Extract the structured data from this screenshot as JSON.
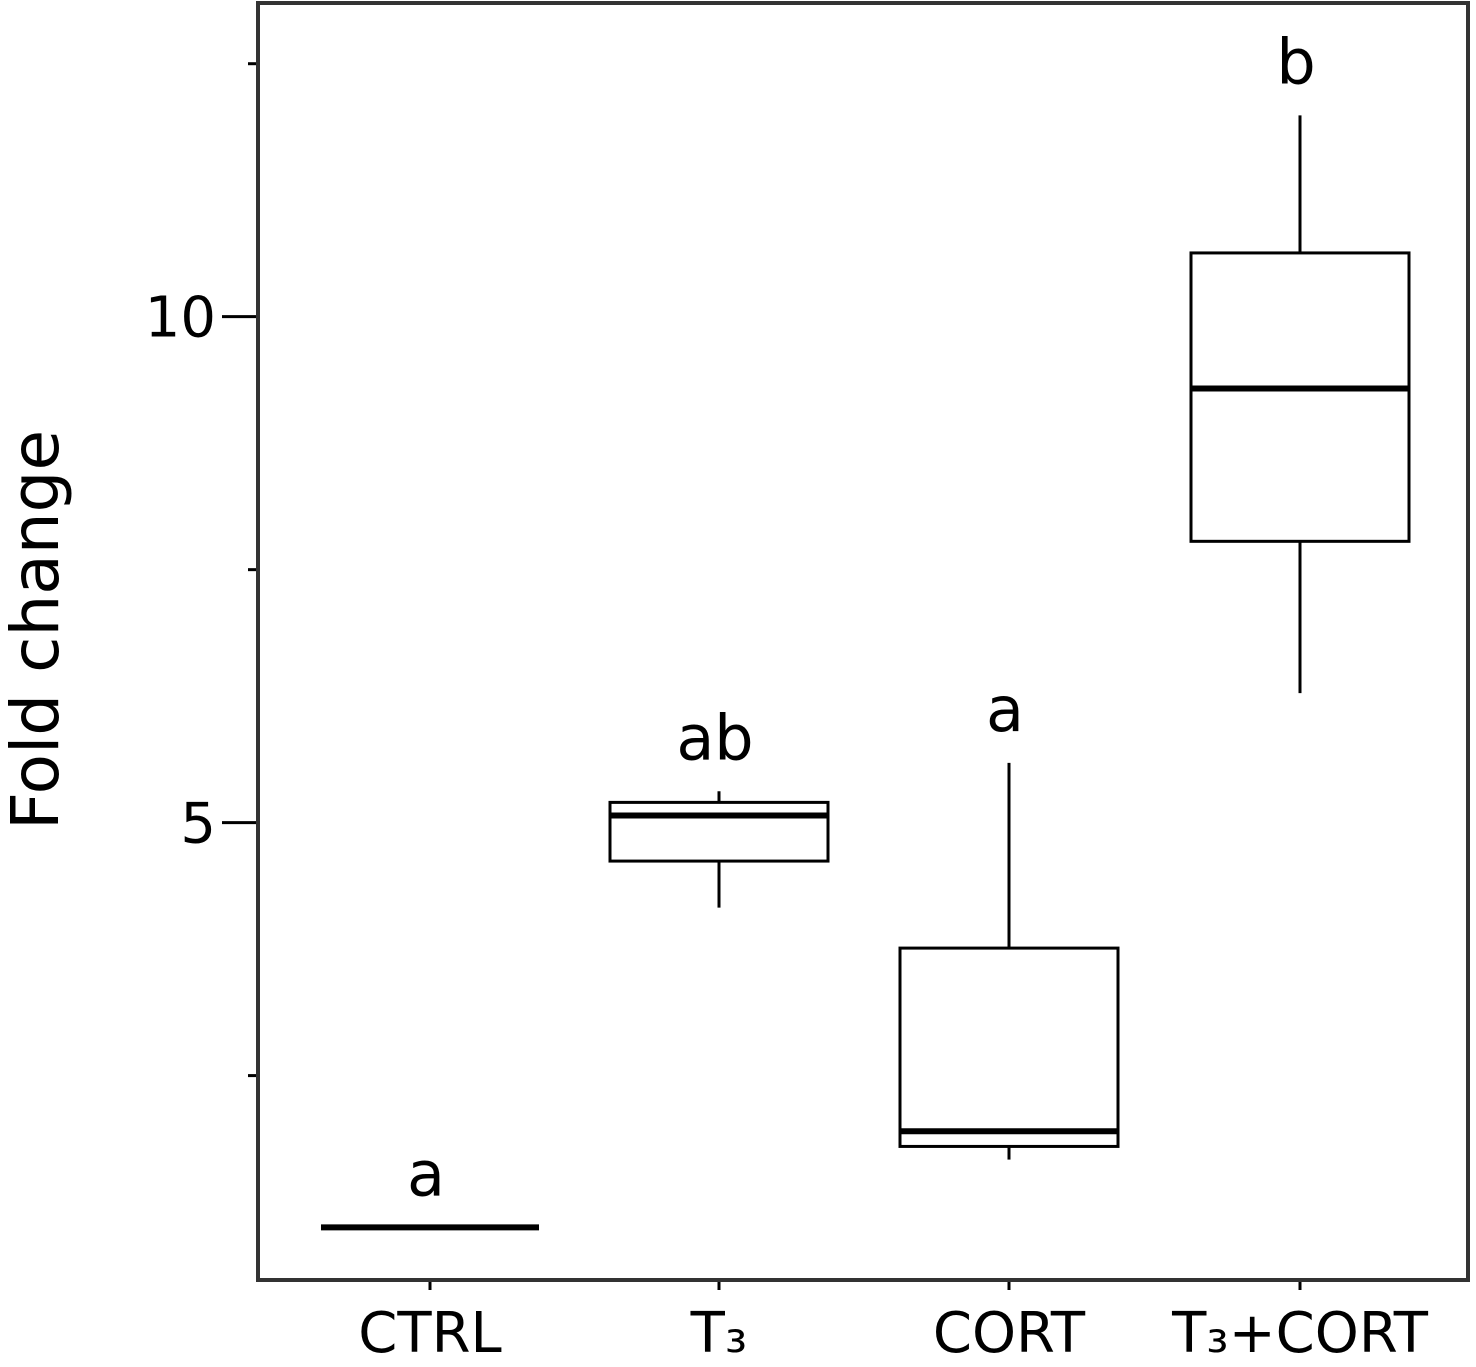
{
  "chart_data": {
    "type": "box",
    "title": "",
    "xlabel": "",
    "ylabel": "Fold change",
    "ylim": [
      0.48,
      13.1
    ],
    "y_ticks_major": [
      5,
      10
    ],
    "y_tick_labels": [
      "5",
      "10"
    ],
    "y_ticks_minor": [
      2.5,
      7.5,
      12.5
    ],
    "grid": false,
    "categories": [
      "CTRL",
      "T₃",
      "CORT",
      "T₃+CORT"
    ],
    "boxes": [
      {
        "category": "CTRL",
        "whisker_low": 1.0,
        "q1": 1.0,
        "median": 1.0,
        "q3": 1.0,
        "whisker_high": 1.0,
        "letter": "a"
      },
      {
        "category": "T₃",
        "whisker_low": 4.16,
        "q1": 4.62,
        "median": 5.07,
        "q3": 5.2,
        "whisker_high": 5.31,
        "letter": "ab"
      },
      {
        "category": "CORT",
        "whisker_low": 1.67,
        "q1": 1.8,
        "median": 1.95,
        "q3": 3.76,
        "whisker_high": 5.59,
        "letter": "a"
      },
      {
        "category": "T₃+CORT",
        "whisker_low": 6.28,
        "q1": 7.78,
        "median": 9.29,
        "q3": 10.63,
        "whisker_high": 11.99,
        "letter": "b"
      }
    ],
    "colors": {
      "box_fill": "#ffffff",
      "stroke": "#000000",
      "frame": "#333333"
    }
  }
}
